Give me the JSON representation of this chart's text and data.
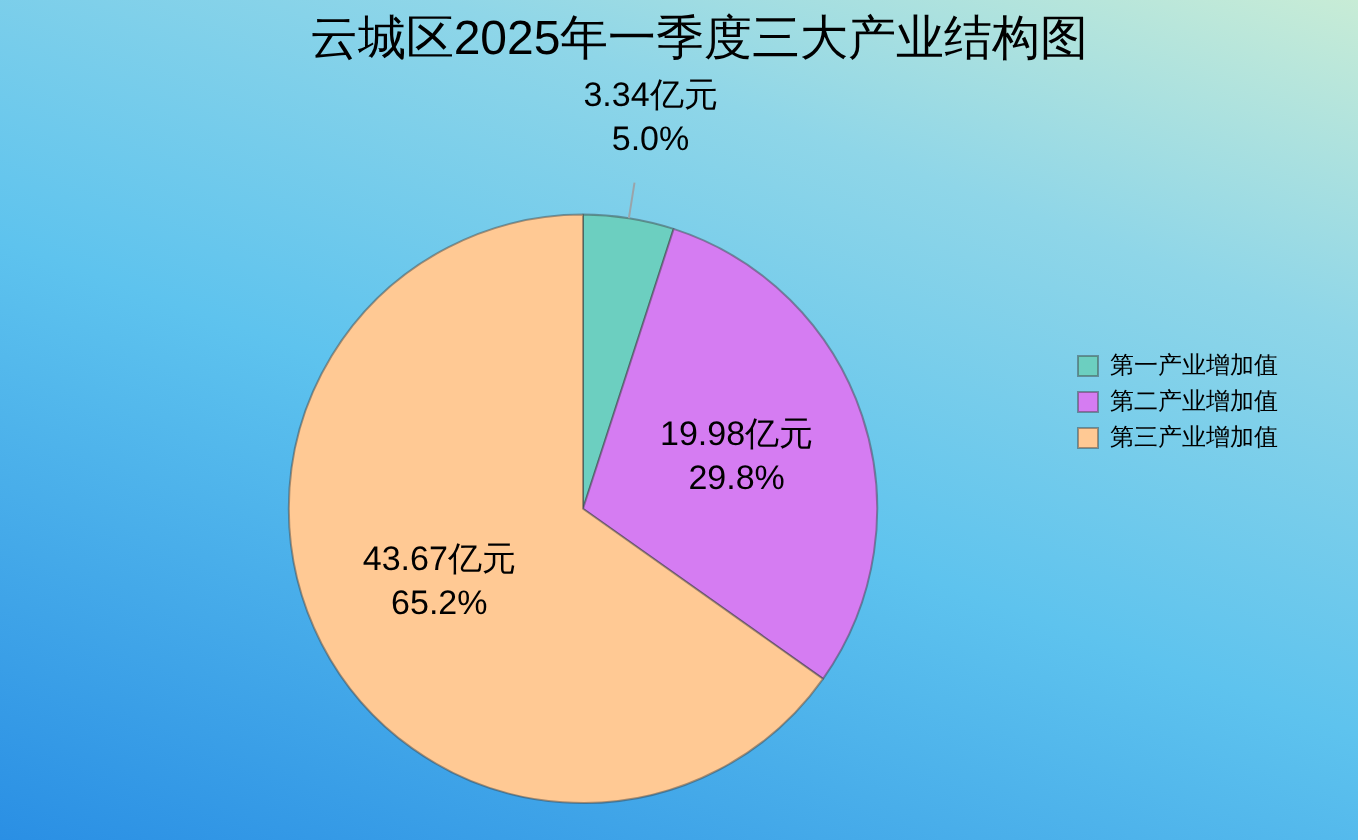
{
  "chart_data": {
    "type": "pie",
    "title": "云城区2025年一季度三大产业结构图",
    "categories": [
      "第一产业增加值",
      "第二产业增加值",
      "第三产业增加值"
    ],
    "values": [
      3.34,
      19.98,
      43.67
    ],
    "colors": [
      "#6ccfc0",
      "#d57cf2",
      "#ffc994"
    ],
    "value_labels": [
      "3.34亿元\n5.0%",
      "19.98亿元\n29.8%",
      "43.67亿元\n65.2%"
    ],
    "legend": "right"
  }
}
